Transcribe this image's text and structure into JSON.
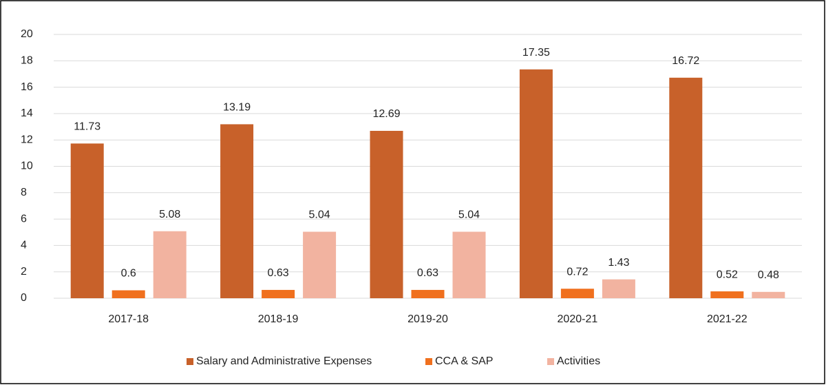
{
  "chart_data": {
    "type": "bar",
    "categories": [
      "2017-18",
      "2018-19",
      "2019-20",
      "2020-21",
      "2021-22"
    ],
    "series": [
      {
        "name": "Salary and Administrative Expenses",
        "color": "#c8612a",
        "values": [
          11.73,
          13.19,
          12.69,
          17.35,
          16.72
        ]
      },
      {
        "name": "CCA & SAP",
        "color": "#f0701e",
        "values": [
          0.6,
          0.63,
          0.63,
          0.72,
          0.52
        ]
      },
      {
        "name": "Activities",
        "color": "#f2b3a0",
        "values": [
          5.08,
          5.04,
          5.04,
          1.43,
          0.48
        ]
      }
    ],
    "ylim": [
      0,
      20
    ],
    "yticks": [
      0,
      2,
      4,
      6,
      8,
      10,
      12,
      14,
      16,
      18,
      20
    ],
    "grid": true,
    "legend": "bottom",
    "data_labels": true
  }
}
